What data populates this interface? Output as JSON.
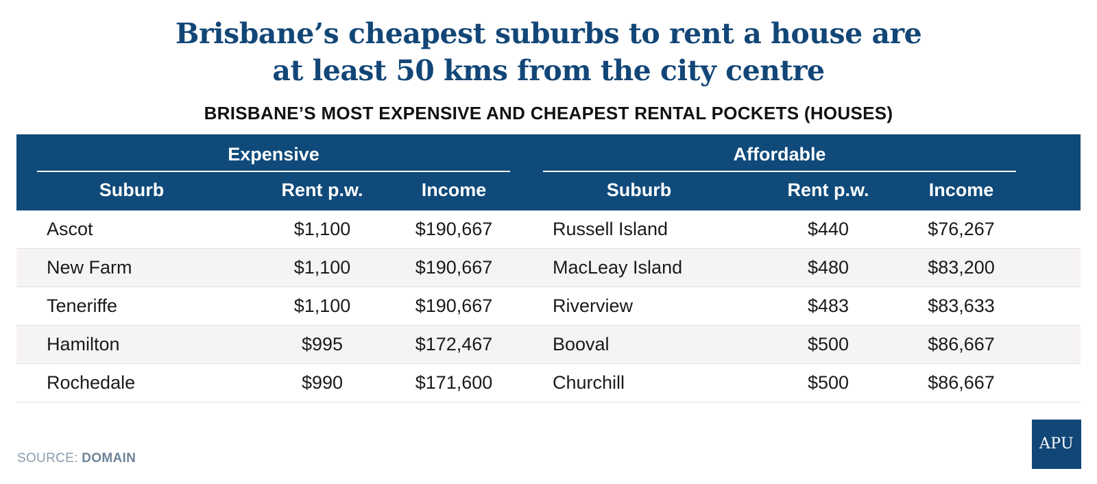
{
  "header": {
    "title_line1": "Brisbane’s cheapest suburbs to rent a house are",
    "title_line2": "at least 50 kms from the city centre",
    "subtitle": "BRISBANE’S MOST EXPENSIVE AND CHEAPEST RENTAL POCKETS (HOUSES)"
  },
  "chart_data": {
    "type": "table",
    "groups": [
      {
        "name": "Expensive",
        "columns": [
          "Suburb",
          "Rent p.w.",
          "Income"
        ],
        "rows": [
          [
            "Ascot",
            "$1,100",
            "$190,667"
          ],
          [
            "New Farm",
            "$1,100",
            "$190,667"
          ],
          [
            "Teneriffe",
            "$1,100",
            "$190,667"
          ],
          [
            "Hamilton",
            "$995",
            "$172,467"
          ],
          [
            "Rochedale",
            "$990",
            "$171,600"
          ]
        ]
      },
      {
        "name": "Affordable",
        "columns": [
          "Suburb",
          "Rent p.w.",
          "Income"
        ],
        "rows": [
          [
            "Russell Island",
            "$440",
            "$76,267"
          ],
          [
            "MacLeay Island",
            "$480",
            "$83,200"
          ],
          [
            "Riverview",
            "$483",
            "$83,633"
          ],
          [
            "Booval",
            "$500",
            "$86,667"
          ],
          [
            "Churchill",
            "$500",
            "$86,667"
          ]
        ]
      }
    ]
  },
  "footer": {
    "source_label": "SOURCE:",
    "source_value": "DOMAIN",
    "logo_text": "APU"
  },
  "colors": {
    "header_bg": "#0f4a7a",
    "title": "#124677",
    "row_alt": "#f6f3f4"
  }
}
